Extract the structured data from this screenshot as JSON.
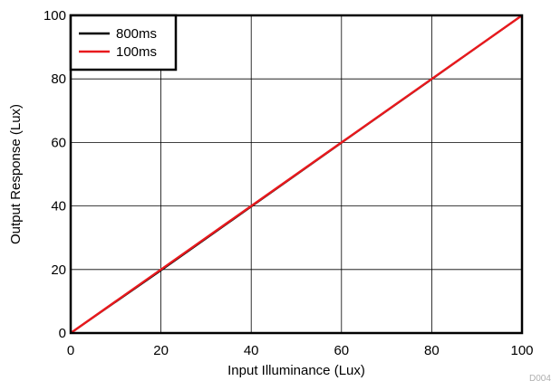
{
  "chart_data": {
    "type": "line",
    "xlabel": "Input Illuminance (Lux)",
    "ylabel": "Output Response (Lux)",
    "xlim": [
      0,
      100
    ],
    "ylim": [
      0,
      100
    ],
    "x_ticks": [
      0,
      20,
      40,
      60,
      80,
      100
    ],
    "y_ticks": [
      0,
      20,
      40,
      60,
      80,
      100
    ],
    "x_tick_labels": [
      "0",
      "20",
      "40",
      "60",
      "80",
      "100"
    ],
    "y_tick_labels": [
      "0",
      "20",
      "40",
      "60",
      "80",
      "100"
    ],
    "grid": true,
    "legend_position": "top-left",
    "series": [
      {
        "name": "800ms",
        "color": "#000000",
        "x": [
          0,
          20,
          40,
          60,
          80,
          100
        ],
        "y": [
          0,
          19.7,
          39.8,
          59.9,
          79.9,
          100
        ]
      },
      {
        "name": "100ms",
        "color": "#e8191d",
        "x": [
          0,
          20,
          40,
          60,
          80,
          100
        ],
        "y": [
          0,
          20,
          40,
          60,
          80,
          100
        ]
      }
    ],
    "footer_code": "D004"
  }
}
